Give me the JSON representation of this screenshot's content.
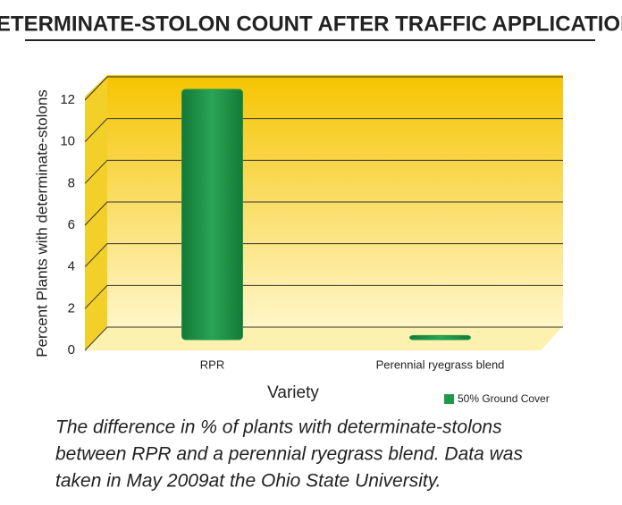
{
  "chart_data": {
    "type": "bar",
    "title": "DETERMINATE-STOLON COUNT AFTER TRAFFIC APPLICATION",
    "x_label": "Variety",
    "y_label": "Percent Plants with determinate-stolons",
    "categories": [
      "RPR",
      "Perennial ryegrass blend"
    ],
    "series": [
      {
        "name": "50% Ground Cover",
        "color": "#1e9a4a",
        "values": [
          12,
          0.2
        ]
      }
    ],
    "ylim": [
      0,
      12
    ],
    "yticks": [
      0,
      2,
      4,
      6,
      8,
      10,
      12
    ],
    "grid": true,
    "legend": "bottom-right",
    "caption_lines": [
      "The difference in % of plants with determinate-stolons",
      "between RPR and a perennial ryegrass blend. Data was",
      "taken in May 2009at the Ohio State University."
    ]
  }
}
